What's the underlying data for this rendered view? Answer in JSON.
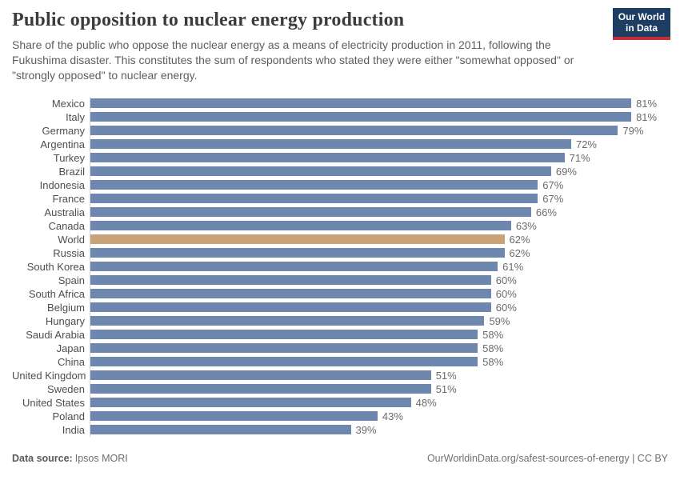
{
  "header": {
    "title": "Public opposition to nuclear energy production",
    "subtitle": "Share of the public who oppose the nuclear energy as a means of electricity production in 2011, following the Fukushima disaster. This constitutes the sum of respondents who stated they were either \"somewhat opposed\" or \"strongly opposed\" to nuclear energy.",
    "logo": {
      "line1": "Our World",
      "line2": "in Data",
      "bg_color": "#1d3d63",
      "stripe_color": "#c62e3a"
    }
  },
  "chart_data": {
    "type": "bar",
    "orientation": "horizontal",
    "title": "Public opposition to nuclear energy production",
    "xlabel": "",
    "ylabel": "",
    "grid": false,
    "legend": "none",
    "xlim": [
      0,
      86.5
    ],
    "unit": "%",
    "bar_color": "#6e87af",
    "highlight_color": "#c9a378",
    "highlight_category": "World",
    "categories": [
      "Mexico",
      "Italy",
      "Germany",
      "Argentina",
      "Turkey",
      "Brazil",
      "Indonesia",
      "France",
      "Australia",
      "Canada",
      "World",
      "Russia",
      "South Korea",
      "Spain",
      "South Africa",
      "Belgium",
      "Hungary",
      "Saudi Arabia",
      "Japan",
      "China",
      "United Kingdom",
      "Sweden",
      "United States",
      "Poland",
      "India"
    ],
    "values": [
      81,
      81,
      79,
      72,
      71,
      69,
      67,
      67,
      66,
      63,
      62,
      62,
      61,
      60,
      60,
      60,
      59,
      58,
      58,
      58,
      51,
      51,
      48,
      43,
      39
    ],
    "value_labels": [
      "81%",
      "81%",
      "79%",
      "72%",
      "71%",
      "69%",
      "67%",
      "67%",
      "66%",
      "63%",
      "62%",
      "62%",
      "61%",
      "60%",
      "60%",
      "60%",
      "59%",
      "58%",
      "58%",
      "58%",
      "51%",
      "51%",
      "48%",
      "43%",
      "39%"
    ]
  },
  "footer": {
    "datasource_label": "Data source:",
    "datasource_value": "Ipsos MORI",
    "link": "OurWorldinData.org/safest-sources-of-energy | CC BY"
  }
}
